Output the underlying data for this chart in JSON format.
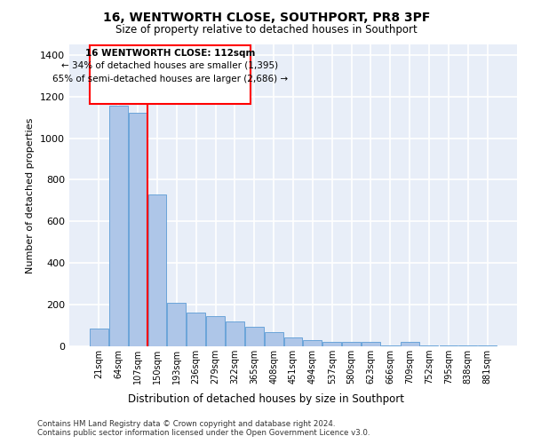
{
  "title": "16, WENTWORTH CLOSE, SOUTHPORT, PR8 3PF",
  "subtitle": "Size of property relative to detached houses in Southport",
  "xlabel": "Distribution of detached houses by size in Southport",
  "ylabel": "Number of detached properties",
  "bar_color": "#aec6e8",
  "bar_edge_color": "#5b9bd5",
  "background_color": "#e8eef8",
  "grid_color": "#ffffff",
  "categories": [
    "21sqm",
    "64sqm",
    "107sqm",
    "150sqm",
    "193sqm",
    "236sqm",
    "279sqm",
    "322sqm",
    "365sqm",
    "408sqm",
    "451sqm",
    "494sqm",
    "537sqm",
    "580sqm",
    "623sqm",
    "666sqm",
    "709sqm",
    "752sqm",
    "795sqm",
    "838sqm",
    "881sqm"
  ],
  "values": [
    85,
    1155,
    1120,
    730,
    210,
    160,
    145,
    120,
    95,
    70,
    42,
    28,
    22,
    20,
    20,
    5,
    22,
    5,
    5,
    5,
    5
  ],
  "property_line_x": 2.48,
  "property_sqm": 112,
  "pct_smaller": 34,
  "n_smaller": 1395,
  "pct_larger_semi": 65,
  "n_larger_semi": 2686,
  "footer_line1": "Contains HM Land Registry data © Crown copyright and database right 2024.",
  "footer_line2": "Contains public sector information licensed under the Open Government Licence v3.0.",
  "ylim": [
    0,
    1450
  ],
  "yticks": [
    0,
    200,
    400,
    600,
    800,
    1000,
    1200,
    1400
  ]
}
